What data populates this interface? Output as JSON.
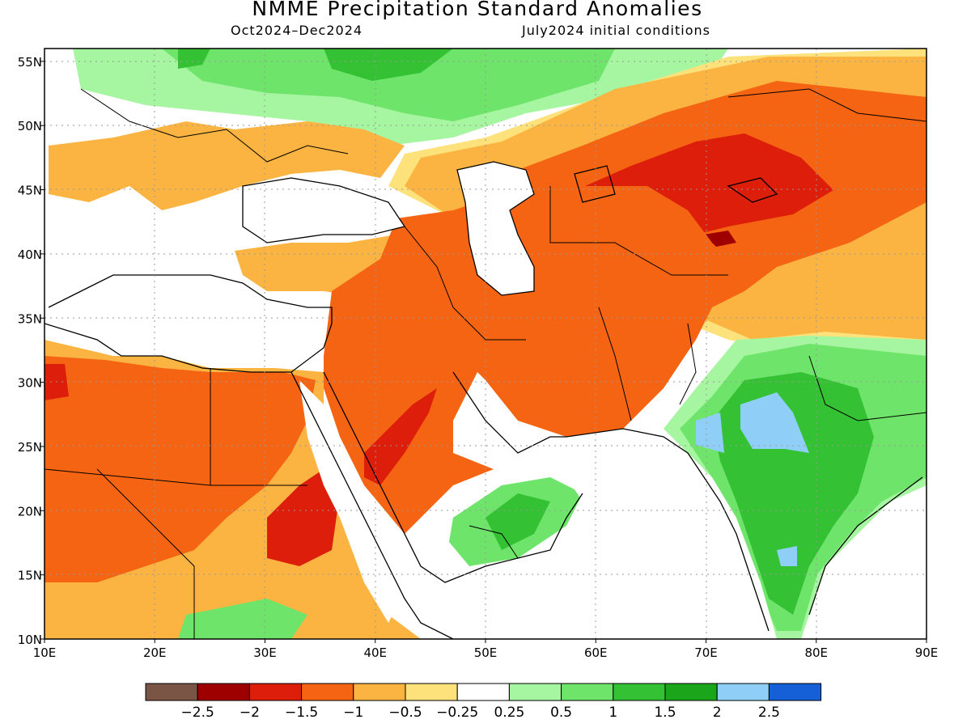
{
  "title": "NMME Precipitation Standard Anomalies",
  "subtitle_left": "Oct2024–Dec2024",
  "subtitle_right": "July2024 initial conditions",
  "map": {
    "lon_range": [
      10,
      90
    ],
    "lat_range": [
      10,
      56
    ],
    "lat_ticks": [
      "10N",
      "15N",
      "20N",
      "25N",
      "30N",
      "35N",
      "40N",
      "45N",
      "50N",
      "55N"
    ],
    "lon_ticks": [
      "10E",
      "20E",
      "30E",
      "40E",
      "50E",
      "60E",
      "70E",
      "80E",
      "90E"
    ],
    "grid": "dotted"
  },
  "colorbar": {
    "colors": [
      "#7a5545",
      "#9e0000",
      "#dc1e0a",
      "#f56412",
      "#fbb441",
      "#fde17a",
      "#ffffff",
      "#a6f5a0",
      "#6ee46a",
      "#34c234",
      "#1aa51a",
      "#8fcff7",
      "#1560d6"
    ],
    "labels": [
      "−2.5",
      "−2",
      "−1.5",
      "−1",
      "−0.5",
      "−0.25",
      "0.25",
      "0.5",
      "1",
      "1.5",
      "2",
      "2.5"
    ]
  },
  "anomaly_regions": [
    {
      "name": "north-africa",
      "level": "-1"
    },
    {
      "name": "egypt-sudan",
      "level": "-1.5"
    },
    {
      "name": "arabia",
      "level": "-1"
    },
    {
      "name": "iran-afghanistan",
      "level": "-1"
    },
    {
      "name": "central-asia",
      "level": "-1.5"
    },
    {
      "name": "india",
      "level": "1.5"
    },
    {
      "name": "oman-yemen",
      "level": "1"
    },
    {
      "name": "eastern-europe",
      "level": "0.5"
    }
  ]
}
